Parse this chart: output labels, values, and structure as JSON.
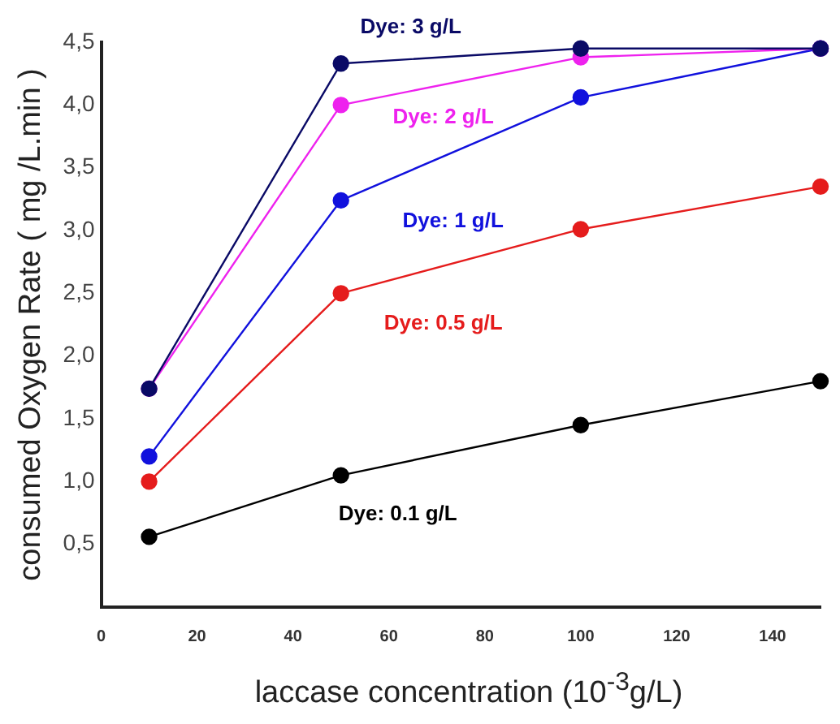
{
  "chart_data": {
    "type": "line",
    "xlabel": "laccase concentration (10$^{-3}$g/L)",
    "ylabel": "consumed Oxygen Rate ( mg /L.min )",
    "x": [
      10,
      50,
      100,
      150
    ],
    "series": [
      {
        "name": "Dye: 3 g/L",
        "color": "#0a0a66",
        "values": [
          1.74,
          4.33,
          4.45,
          4.45
        ]
      },
      {
        "name": "Dye: 2 g/L",
        "color": "#ee22ee",
        "values": [
          1.74,
          4.0,
          4.38,
          4.45
        ]
      },
      {
        "name": "Dye: 1 g/L",
        "color": "#1111dd",
        "values": [
          1.2,
          3.24,
          4.06,
          4.45
        ]
      },
      {
        "name": "Dye: 0.5 g/L",
        "color": "#e51c1c",
        "values": [
          1.0,
          2.5,
          3.01,
          3.35
        ]
      },
      {
        "name": "Dye: 0.1 g/L",
        "color": "#000000",
        "values": [
          0.56,
          1.05,
          1.45,
          1.8
        ]
      }
    ],
    "xlim": [
      0,
      150
    ],
    "xticks": [
      0,
      20,
      40,
      60,
      80,
      100,
      120,
      140
    ],
    "ylim": [
      0,
      4.5
    ],
    "yticks": [
      {
        "value": 0.5,
        "label": "0,5"
      },
      {
        "value": 1,
        "label": "1,0"
      },
      {
        "value": 1.5,
        "label": "1,5"
      },
      {
        "value": 2,
        "label": "2,0"
      },
      {
        "value": 2.5,
        "label": "2,5"
      },
      {
        "value": 3,
        "label": "3,0"
      },
      {
        "value": 3.5,
        "label": "3,5"
      },
      {
        "value": 4,
        "label": "4,0"
      },
      {
        "value": 4.5,
        "label": "4,5"
      }
    ],
    "grid": false,
    "legend": false,
    "marker": "circle",
    "line_style": "solid"
  }
}
